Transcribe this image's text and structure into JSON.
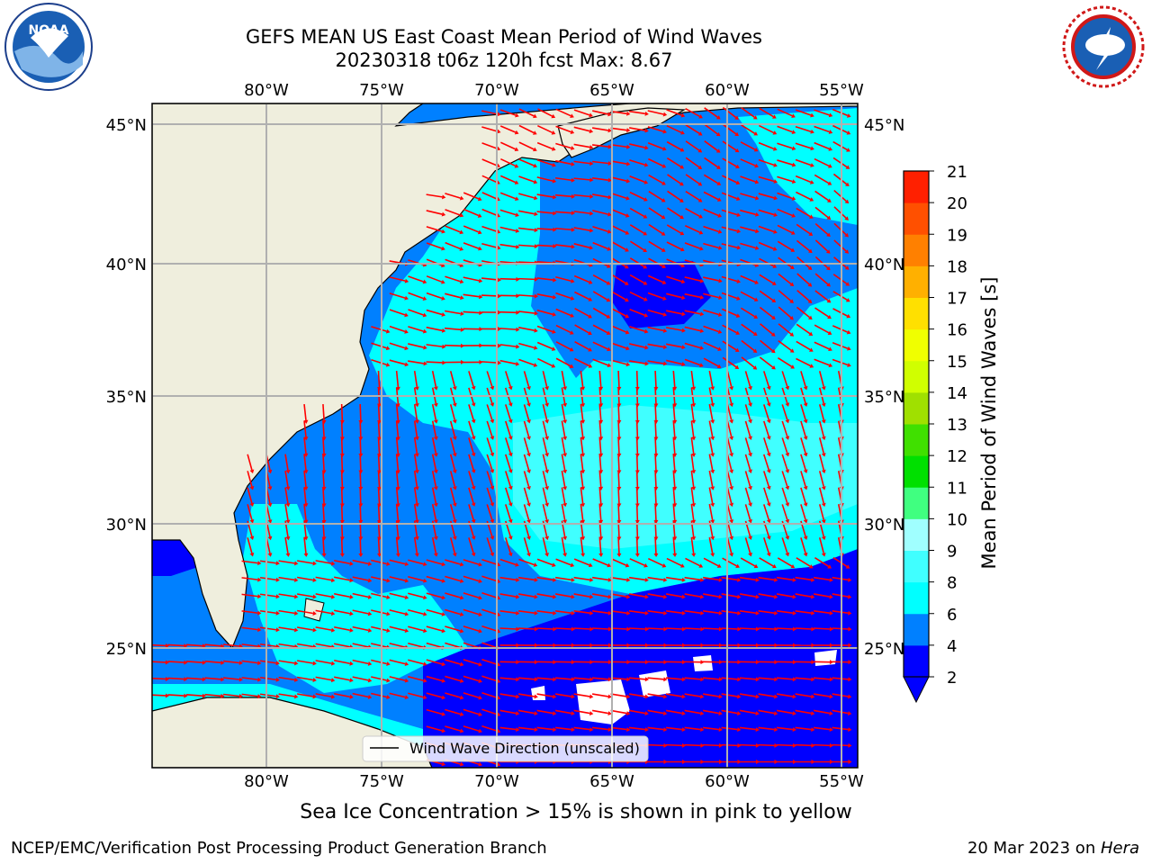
{
  "header": {
    "title_line1": "GEFS MEAN US East Coast Mean Period of Wind Waves",
    "title_line2": "20230318 t06z 120h fcst   Max: 8.67"
  },
  "logos": {
    "left": {
      "name": "noaa-logo",
      "text": "NOAA"
    },
    "right": {
      "name": "nws-logo",
      "text": "NATIONAL WEATHER SERVICE"
    }
  },
  "map": {
    "lon_ticks": [
      "80°W",
      "75°W",
      "70°W",
      "65°W",
      "60°W",
      "55°W"
    ],
    "lat_ticks": [
      "45°N",
      "40°N",
      "35°N",
      "30°N",
      "25°N"
    ],
    "legend_label": "Wind Wave Direction (unscaled)",
    "arrow_color": "#ff0000",
    "land_color": "#efeedd",
    "grid": true
  },
  "colorbar": {
    "label": "Mean Period of Wind Waves [s]",
    "ticks": [
      "2",
      "4",
      "6",
      "8",
      "9",
      "10",
      "11",
      "12",
      "13",
      "14",
      "15",
      "16",
      "17",
      "18",
      "19",
      "20",
      "21"
    ],
    "colors": [
      "#0000ff",
      "#0080ff",
      "#00ffff",
      "#40ffff",
      "#a0ffff",
      "#40ff80",
      "#00e000",
      "#40e000",
      "#a0e000",
      "#d0ff00",
      "#f0ff00",
      "#ffe000",
      "#ffb000",
      "#ff8000",
      "#ff5000",
      "#ff2000",
      "#ff0000"
    ]
  },
  "note": "Sea Ice Concentration > 15% is shown in pink to yellow",
  "footer": {
    "left": "NCEP/EMC/Verification Post Processing Product Generation Branch",
    "right_prefix": "20 Mar 2023 on ",
    "right_host": "Hera"
  }
}
